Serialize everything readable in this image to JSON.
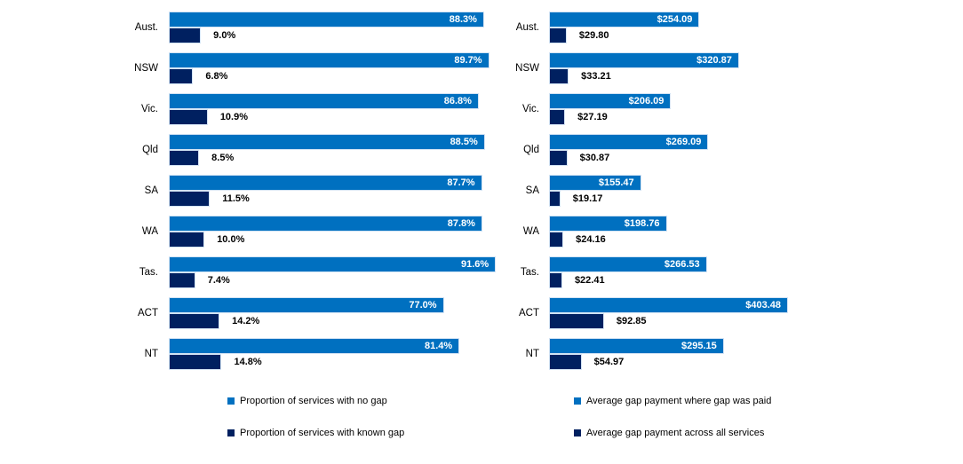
{
  "colors": {
    "primary_blue": "#0070C0",
    "dark_navy": "#002060",
    "bar_border": "#d2e3f4",
    "label_on_bar": "#ffffff",
    "label_text": "#000000",
    "background": "#ffffff"
  },
  "chart_data": [
    {
      "type": "bar",
      "orientation": "horizontal",
      "title": "",
      "xlabel": "",
      "ylabel": "",
      "xlim": [
        0,
        100
      ],
      "grid": false,
      "legend_position": "bottom",
      "categories": [
        "Aust.",
        "NSW",
        "Vic.",
        "Qld",
        "SA",
        "WA",
        "Tas.",
        "ACT",
        "NT"
      ],
      "series": [
        {
          "name": "Proportion of services with no gap",
          "color": "#0070C0",
          "values": [
            88.3,
            89.7,
            86.8,
            88.5,
            87.7,
            87.8,
            91.6,
            77.0,
            81.4
          ],
          "labels": [
            "88.3%",
            "89.7%",
            "86.8%",
            "88.5%",
            "87.7%",
            "87.8%",
            "91.6%",
            "77.0%",
            "81.4%"
          ]
        },
        {
          "name": "Proportion of services with known gap",
          "color": "#002060",
          "values": [
            9.0,
            6.8,
            10.9,
            8.5,
            11.5,
            10.0,
            7.4,
            14.2,
            14.8
          ],
          "labels": [
            "9.0%",
            "6.8%",
            "10.9%",
            "8.5%",
            "11.5%",
            "10.0%",
            "7.4%",
            "14.2%",
            "14.8%"
          ]
        }
      ]
    },
    {
      "type": "bar",
      "orientation": "horizontal",
      "title": "",
      "xlabel": "",
      "ylabel": "",
      "xlim": [
        0,
        450
      ],
      "grid": false,
      "legend_position": "bottom",
      "categories": [
        "Aust.",
        "NSW",
        "Vic.",
        "Qld",
        "SA",
        "WA",
        "Tas.",
        "ACT",
        "NT"
      ],
      "series": [
        {
          "name": "Average gap payment where gap was paid",
          "color": "#0070C0",
          "values": [
            254.09,
            320.87,
            206.09,
            269.09,
            155.47,
            198.76,
            266.53,
            403.48,
            295.15
          ],
          "labels": [
            "$254.09",
            "$320.87",
            "$206.09",
            "$269.09",
            "$155.47",
            "$198.76",
            "$266.53",
            "$403.48",
            "$295.15"
          ]
        },
        {
          "name": "Average gap payment across all services",
          "color": "#002060",
          "values": [
            29.8,
            33.21,
            27.19,
            30.87,
            19.17,
            24.16,
            22.41,
            92.85,
            54.97
          ],
          "labels": [
            "$29.80",
            "$33.21",
            "$27.19",
            "$30.87",
            "$19.17",
            "$24.16",
            "$22.41",
            "$92.85",
            "$54.97"
          ]
        }
      ]
    }
  ]
}
